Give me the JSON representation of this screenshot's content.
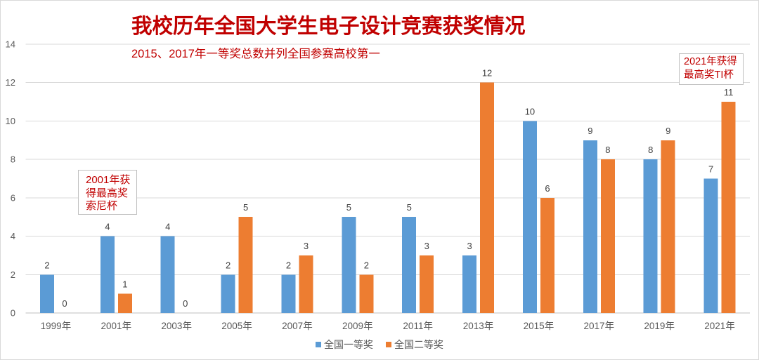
{
  "chart_data": {
    "type": "bar",
    "title": "我校历年全国大学生电子设计竞赛获奖情况",
    "subtitle": "2015、2017年一等奖总数并列全国参赛高校第一",
    "categories": [
      "1999年",
      "2001年",
      "2003年",
      "2005年",
      "2007年",
      "2009年",
      "2011年",
      "2013年",
      "2015年",
      "2017年",
      "2019年",
      "2021年"
    ],
    "series": [
      {
        "name": "全国一等奖",
        "color": "#5B9BD5",
        "values": [
          2,
          4,
          4,
          2,
          2,
          5,
          5,
          3,
          10,
          9,
          8,
          7
        ]
      },
      {
        "name": "全国二等奖",
        "color": "#ED7D31",
        "values": [
          0,
          1,
          0,
          5,
          3,
          2,
          3,
          12,
          6,
          8,
          9,
          11
        ]
      }
    ],
    "ylim": [
      0,
      14
    ],
    "y_ticks": [
      0,
      2,
      4,
      6,
      8,
      10,
      12,
      14
    ],
    "grid": true,
    "data_labels": true,
    "legend": {
      "position": "bottom"
    },
    "annotations": [
      {
        "lines": [
          "2001年获",
          "得最高奖",
          "索尼杯"
        ]
      },
      {
        "lines": [
          "2021年获得",
          "最高奖TI杯"
        ]
      }
    ]
  },
  "colors": {
    "title": "#C00000",
    "annotation_text": "#C00000",
    "axis_text": "#595959",
    "data_label": "#404040",
    "gridline": "#D9D9D9"
  }
}
